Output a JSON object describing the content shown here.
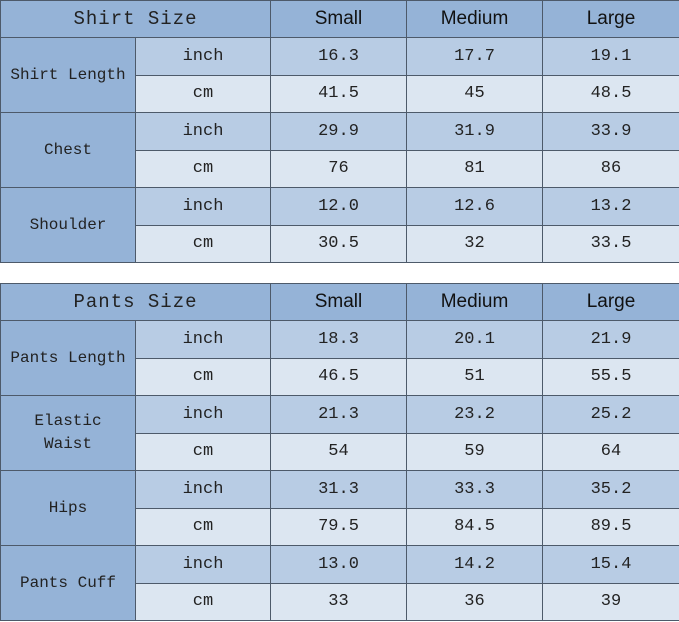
{
  "shirt": {
    "title": "Shirt Size",
    "sizes": [
      "Small",
      "Medium",
      "Large"
    ],
    "rows": [
      {
        "label": "Shirt Length",
        "inch": [
          "16.3",
          "17.7",
          "19.1"
        ],
        "cm": [
          "41.5",
          "45",
          "48.5"
        ]
      },
      {
        "label": "Chest",
        "inch": [
          "29.9",
          "31.9",
          "33.9"
        ],
        "cm": [
          "76",
          "81",
          "86"
        ]
      },
      {
        "label": "Shoulder",
        "inch": [
          "12.0",
          "12.6",
          "13.2"
        ],
        "cm": [
          "30.5",
          "32",
          "33.5"
        ]
      }
    ]
  },
  "pants": {
    "title": "Pants Size",
    "sizes": [
      "Small",
      "Medium",
      "Large"
    ],
    "rows": [
      {
        "label": "Pants Length",
        "inch": [
          "18.3",
          "20.1",
          "21.9"
        ],
        "cm": [
          "46.5",
          "51",
          "55.5"
        ]
      },
      {
        "label": "Elastic Waist",
        "inch": [
          "21.3",
          "23.2",
          "25.2"
        ],
        "cm": [
          "54",
          "59",
          "64"
        ]
      },
      {
        "label": "Hips",
        "inch": [
          "31.3",
          "33.3",
          "35.2"
        ],
        "cm": [
          "79.5",
          "84.5",
          "89.5"
        ]
      },
      {
        "label": "Pants Cuff",
        "inch": [
          "13.0",
          "14.2",
          "15.4"
        ],
        "cm": [
          "33",
          "36",
          "39"
        ]
      }
    ]
  },
  "units": {
    "inch": "inch",
    "cm": "cm"
  },
  "colors": {
    "header": "#95b3d7",
    "inch_row": "#b8cce4",
    "cm_row": "#dce6f1",
    "border": "#4d5a6a"
  }
}
